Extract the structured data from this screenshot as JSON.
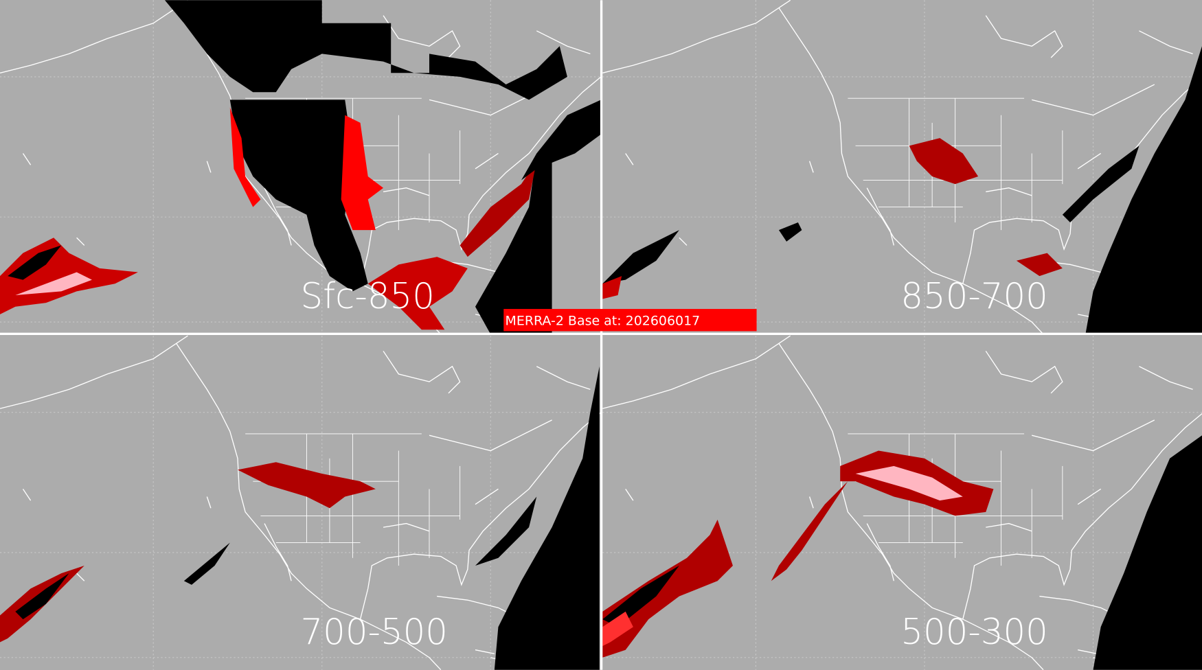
{
  "panels": [
    {
      "label": "Sfc-850"
    },
    {
      "label": "850-700"
    },
    {
      "label": "700-500"
    },
    {
      "label": "500-300"
    }
  ],
  "banner": "MERRA-2 Base at: 202606017"
}
